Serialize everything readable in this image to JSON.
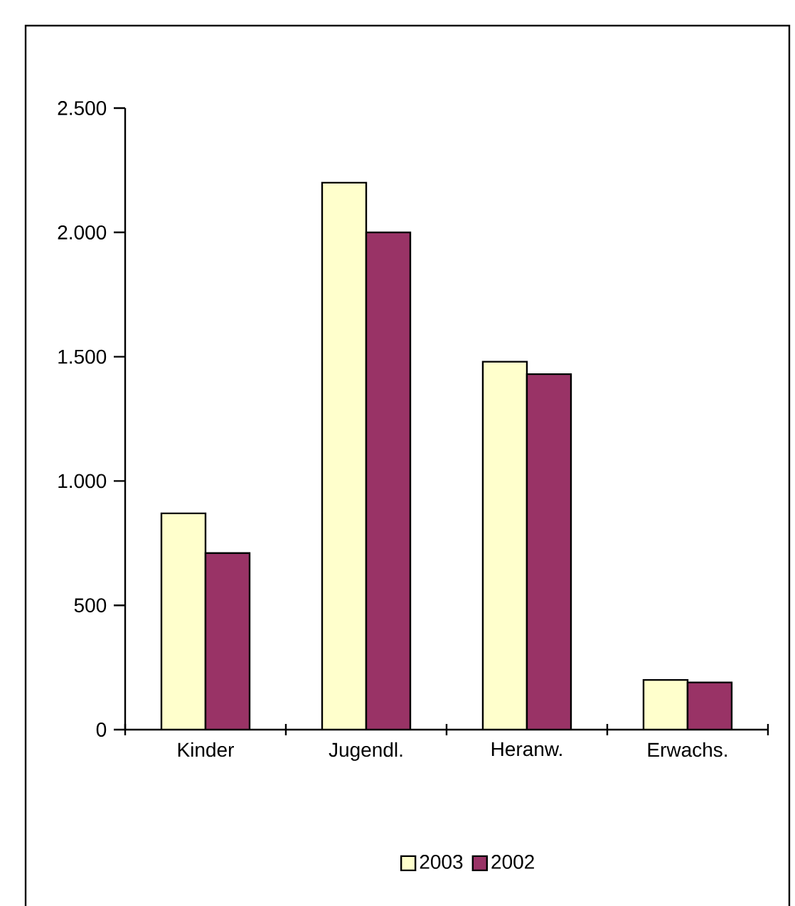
{
  "chart_data": {
    "type": "bar",
    "categories": [
      "Kinder",
      "Jugendl.",
      "Heranw.",
      "Erwachs."
    ],
    "series": [
      {
        "name": "2003",
        "color": "#ffffcc",
        "values": [
          870,
          2200,
          1480,
          200
        ]
      },
      {
        "name": "2002",
        "color": "#993366",
        "values": [
          710,
          2000,
          1430,
          190
        ]
      }
    ],
    "ylim": [
      0,
      2500
    ],
    "yticks": [
      0,
      500,
      {
        "value": 1000,
        "label": "1.000"
      },
      {
        "value": 1500,
        "label": "1.500"
      },
      {
        "value": 2000,
        "label": "2.000"
      },
      {
        "value": 2500,
        "label": "2.500"
      }
    ],
    "grid": false,
    "legend": "bottom"
  }
}
